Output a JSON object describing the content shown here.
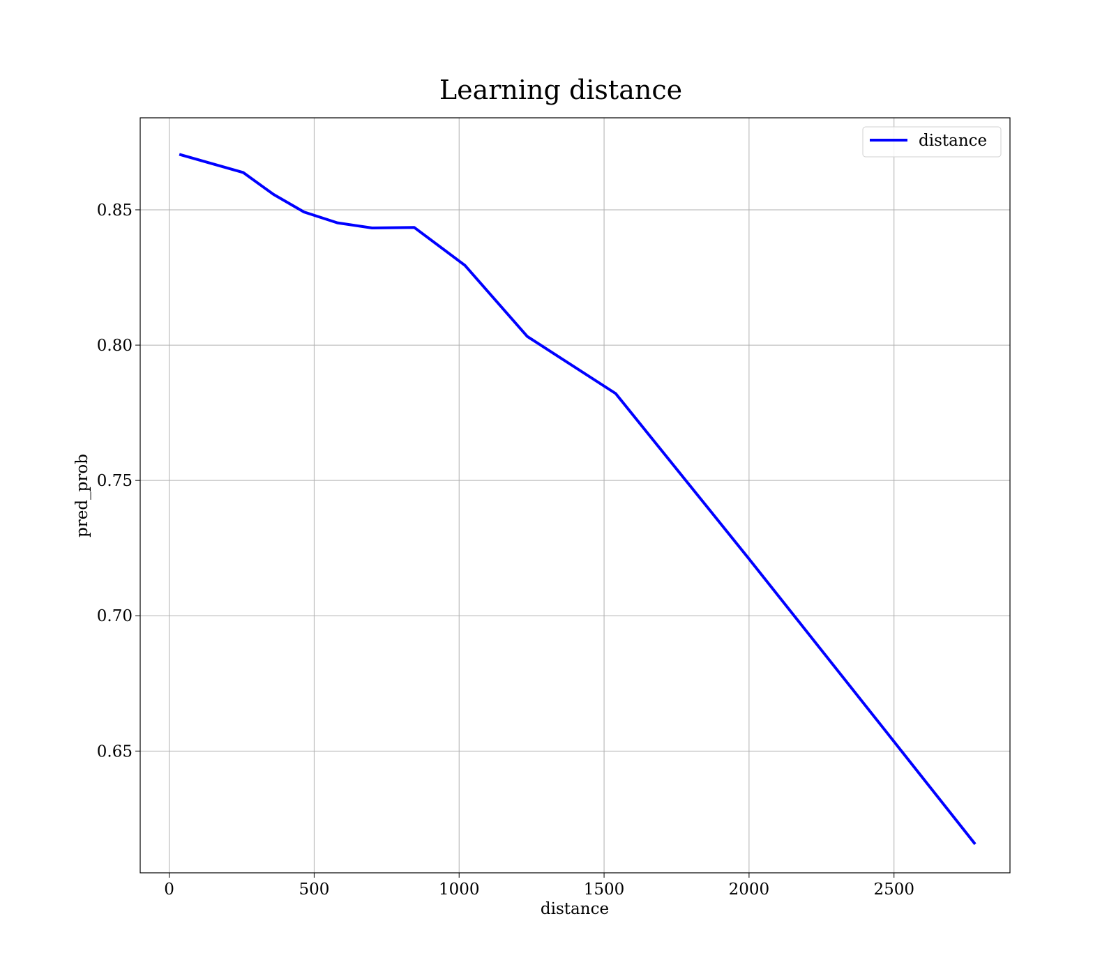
{
  "chart_data": {
    "type": "line",
    "title": "Learning distance",
    "xlabel": "distance",
    "ylabel": "pred_prob",
    "xlim": [
      -100,
      2900
    ],
    "ylim": [
      0.605,
      0.884
    ],
    "xticks": [
      0,
      500,
      1000,
      1500,
      2000,
      2500
    ],
    "xtick_labels": [
      "0",
      "500",
      "1000",
      "1500",
      "2000",
      "2500"
    ],
    "yticks": [
      0.65,
      0.7,
      0.75,
      0.8,
      0.85
    ],
    "ytick_labels": [
      "0.65",
      "0.70",
      "0.75",
      "0.80",
      "0.85"
    ],
    "grid": true,
    "legend_position": "top-right",
    "series": [
      {
        "name": "distance",
        "color": "#0000ff",
        "x": [
          35,
          255,
          360,
          465,
          580,
          700,
          845,
          1020,
          1235,
          1540,
          2000,
          2500,
          2780
        ],
        "y": [
          0.8705,
          0.8638,
          0.8557,
          0.8492,
          0.8452,
          0.8433,
          0.8435,
          0.8295,
          0.8032,
          0.7821,
          0.721,
          0.6535,
          0.6156
        ]
      }
    ]
  }
}
